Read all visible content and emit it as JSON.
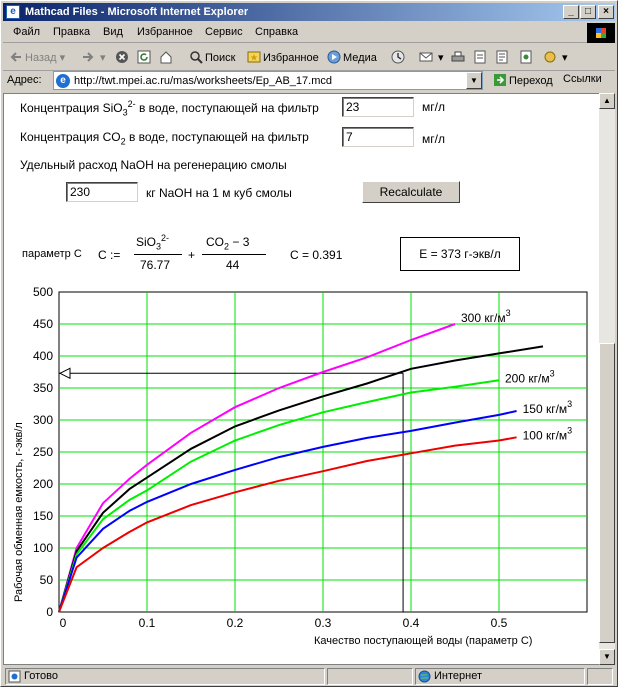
{
  "window": {
    "title": "Mathcad Files - Microsoft Internet Explorer",
    "controls": {
      "minimize": "_",
      "maximize": "□",
      "close": "×"
    }
  },
  "menu": [
    "Файл",
    "Правка",
    "Вид",
    "Избранное",
    "Сервис",
    "Справка"
  ],
  "toolbar": {
    "back": "Назад",
    "search": "Поиск",
    "favorites": "Избранное",
    "media": "Медиа"
  },
  "address": {
    "label": "Адрес:",
    "url": "http://twt.mpei.ac.ru/mas/worksheets/Ep_AB_17.mcd",
    "go": "Переход",
    "links": "Ссылки"
  },
  "form": {
    "sio3_label_pre": "Концентрация SiO",
    "sio3_sub": "3",
    "sio3_sup": "2-",
    "sio3_label_post": " в воде, поступающей на фильтр",
    "sio3_value": "23",
    "sio3_unit": "мг/л",
    "co2_label_pre": "Концентрация CO",
    "co2_sub": "2",
    "co2_label_post": " в воде, поступающей на фильтр",
    "co2_value": "7",
    "co2_unit": "мг/л",
    "naoh_label": "Удельный расход NaOH на регенерацию смолы",
    "naoh_value": "230",
    "naoh_unit": "кг NaOH на 1 м куб смолы",
    "recalc_button": "Recalculate"
  },
  "formula": {
    "param_label": "параметр С",
    "lhs": "C :=",
    "num1": "SiO",
    "num1_sub": "3",
    "num1_sup": "2-",
    "den1": "76.77",
    "plus": "+",
    "num2": "CO",
    "num2_sub": "2",
    "num2_rest": " − 3",
    "den2": "44",
    "result": "C = 0.391",
    "e_result": "E = 373 г-экв/л"
  },
  "chart_data": {
    "type": "line",
    "xlabel": "Качество поступающей воды  (параметр С)",
    "ylabel": "Рабочая обменная емкость, г-экв/л",
    "xlim": [
      0,
      0.6
    ],
    "ylim": [
      0,
      500
    ],
    "x_ticks": [
      "0",
      "0.1",
      "0.2",
      "0.3",
      "0.4",
      "0.5"
    ],
    "y_ticks": [
      "0",
      "50",
      "100",
      "150",
      "200",
      "250",
      "300",
      "350",
      "400",
      "450",
      "500"
    ],
    "grid": true,
    "series": [
      {
        "name": "300 кг/м",
        "color": "#ff00ff",
        "x": [
          0,
          0.02,
          0.05,
          0.08,
          0.1,
          0.15,
          0.2,
          0.25,
          0.3,
          0.35,
          0.4,
          0.45
        ],
        "y": [
          0,
          100,
          170,
          208,
          230,
          280,
          320,
          350,
          375,
          398,
          425,
          450
        ]
      },
      {
        "name": "",
        "color": "#000000",
        "x": [
          0,
          0.02,
          0.05,
          0.08,
          0.1,
          0.15,
          0.2,
          0.25,
          0.3,
          0.35,
          0.4,
          0.45,
          0.5,
          0.55
        ],
        "y": [
          0,
          95,
          155,
          192,
          210,
          255,
          290,
          315,
          337,
          357,
          380,
          393,
          404,
          415
        ]
      },
      {
        "name": "200 кг/м",
        "color": "#00ee00",
        "x": [
          0,
          0.02,
          0.05,
          0.08,
          0.1,
          0.15,
          0.2,
          0.25,
          0.3,
          0.35,
          0.4,
          0.45,
          0.5
        ],
        "y": [
          0,
          90,
          145,
          175,
          190,
          235,
          268,
          292,
          312,
          328,
          343,
          352,
          362
        ]
      },
      {
        "name": "150 кг/м",
        "color": "#0000ff",
        "x": [
          0,
          0.02,
          0.05,
          0.08,
          0.1,
          0.15,
          0.2,
          0.25,
          0.3,
          0.35,
          0.4,
          0.45,
          0.5,
          0.52
        ],
        "y": [
          0,
          85,
          130,
          158,
          172,
          200,
          222,
          242,
          258,
          272,
          283,
          296,
          308,
          314
        ]
      },
      {
        "name": "100 кг/м",
        "color": "#ee0000",
        "x": [
          0,
          0.02,
          0.05,
          0.08,
          0.1,
          0.15,
          0.2,
          0.25,
          0.3,
          0.35,
          0.4,
          0.45,
          0.5,
          0.52
        ],
        "y": [
          0,
          70,
          100,
          125,
          140,
          167,
          187,
          205,
          220,
          236,
          248,
          260,
          268,
          273
        ]
      }
    ],
    "unit_superscript": "3",
    "marker": {
      "x": 0.391,
      "y": 373
    }
  },
  "status": {
    "left": "Готово",
    "zone": "Интернет"
  }
}
